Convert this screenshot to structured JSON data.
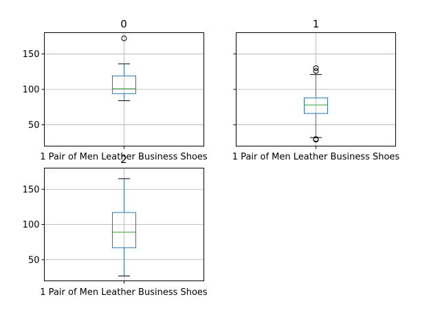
{
  "chart_data": [
    {
      "type": "box",
      "title": "0",
      "categories": [
        "1 Pair of Men Leather Business Shoes"
      ],
      "stats": {
        "whislo": 84,
        "q1": 94,
        "med": 101,
        "q3": 119,
        "whishi": 136
      },
      "fliers": [
        172
      ],
      "yticks": [
        50,
        100,
        150
      ],
      "ylim": [
        20,
        180
      ],
      "grid": true,
      "show_yticklabels": true
    },
    {
      "type": "box",
      "title": "1",
      "categories": [
        "1 Pair of Men Leather Business Shoes"
      ],
      "stats": {
        "whislo": 32,
        "q1": 66,
        "med": 78,
        "q3": 88,
        "whishi": 121
      },
      "fliers": [
        126,
        130,
        29,
        30
      ],
      "yticks": [
        50,
        100,
        150
      ],
      "ylim": [
        20,
        180
      ],
      "grid": true,
      "show_yticklabels": false
    },
    {
      "type": "box",
      "title": "2",
      "categories": [
        "1 Pair of Men Leather Business Shoes"
      ],
      "stats": {
        "whislo": 27,
        "q1": 67,
        "med": 89,
        "q3": 117,
        "whishi": 165
      },
      "fliers": [],
      "yticks": [
        50,
        100,
        150
      ],
      "ylim": [
        20,
        180
      ],
      "grid": true,
      "show_yticklabels": true
    }
  ],
  "colors": {
    "box": "#1f77b4",
    "median": "#2ca02c",
    "grid": "#b0b0b0",
    "axes": "#000000"
  }
}
